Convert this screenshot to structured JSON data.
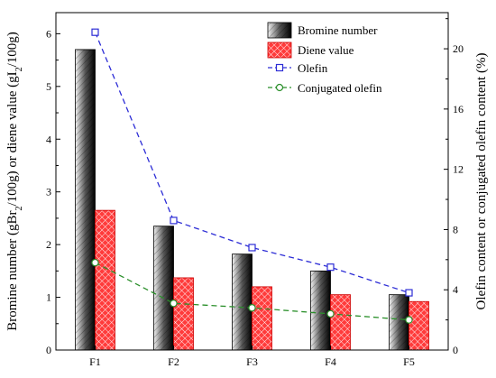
{
  "chart_data": {
    "type": "bar",
    "categories": [
      "F1",
      "F2",
      "F3",
      "F4",
      "F5"
    ],
    "y_left": {
      "label_main": "Bromine number (gBr",
      "label_sub1": "2",
      "label_mid": "/100g) or diene value (gI",
      "label_sub2": "2",
      "label_end": "/100g)",
      "ylim": [
        0,
        6.4
      ],
      "ticks": [
        "0",
        "1",
        "2",
        "3",
        "4",
        "5",
        "6"
      ]
    },
    "y_right": {
      "label": "Olefin content or conjugated olefin content (%)",
      "ylim": [
        0,
        22.4
      ],
      "ticks": [
        "0",
        "4",
        "8",
        "12",
        "16",
        "20"
      ]
    },
    "bar_series": [
      {
        "name": "Bromine number",
        "values": [
          5.7,
          2.35,
          1.82,
          1.5,
          1.05
        ],
        "color": "#222222"
      },
      {
        "name": "Diene value",
        "values": [
          2.65,
          1.37,
          1.2,
          1.05,
          0.92
        ],
        "color": "#ff2020"
      }
    ],
    "line_series": [
      {
        "name": "Olefin",
        "values": [
          21.1,
          8.6,
          6.8,
          5.5,
          3.8
        ],
        "color": "#2d2dd6",
        "marker": "square"
      },
      {
        "name": "Conjugated olefin",
        "values": [
          5.8,
          3.1,
          2.8,
          2.4,
          2.0
        ],
        "color": "#2a8f2a",
        "marker": "circle"
      }
    ],
    "legend_position": "top-right",
    "grid": false
  }
}
